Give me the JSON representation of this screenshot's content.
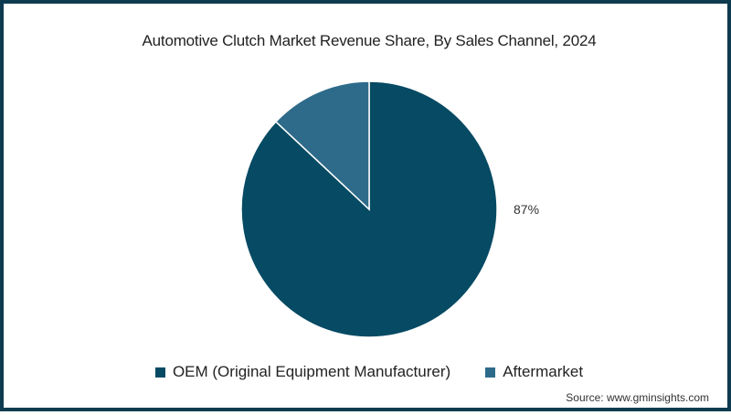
{
  "chart_data": {
    "type": "pie",
    "title": "Automotive Clutch Market Revenue Share, By Sales Channel, 2024",
    "categories": [
      "OEM (Original Equipment Manufacturer)",
      "Aftermarket"
    ],
    "values": [
      87,
      13
    ],
    "unit": "%",
    "colors": [
      "#064a63",
      "#2e6b8a"
    ],
    "data_labels": [
      {
        "category": "OEM (Original Equipment Manufacturer)",
        "text": "87%"
      }
    ],
    "start_angle": "12 o'clock",
    "legend_position": "bottom"
  },
  "title": "Automotive Clutch Market Revenue Share, By Sales Channel, 2024",
  "label_oem": "87%",
  "legend": [
    {
      "label": "OEM (Original Equipment Manufacturer)",
      "color": "#064a63"
    },
    {
      "label": "Aftermarket",
      "color": "#2e6b8a"
    }
  ],
  "source": "Source: www.gminsights.com",
  "colors": {
    "frame": "#0e3b4f",
    "oem": "#064a63",
    "aftermarket": "#2e6b8a"
  }
}
